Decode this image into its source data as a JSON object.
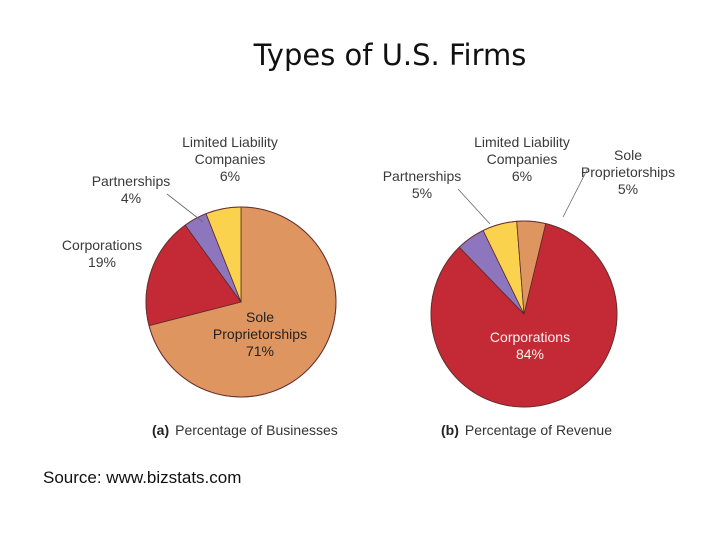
{
  "title": "Types of U.S. Firms",
  "source": "Source: www.bizstats.com",
  "colors": {
    "sole_proprietorships": "#df9560",
    "corporations": "#c42a35",
    "partnerships": "#8e76bf",
    "llc": "#fbd24e"
  },
  "chart_data": [
    {
      "type": "pie",
      "panel": "(a)",
      "title": "Percentage of Businesses",
      "slices": [
        {
          "key": "sole_proprietorships",
          "name_lines": [
            "Sole",
            "Proprietorships"
          ],
          "label": "71%",
          "value": 71
        },
        {
          "key": "corporations",
          "name_lines": [
            "Corporations"
          ],
          "label": "19%",
          "value": 19
        },
        {
          "key": "partnerships",
          "name_lines": [
            "Partnerships"
          ],
          "label": "4%",
          "value": 4
        },
        {
          "key": "llc",
          "name_lines": [
            "Limited Liability",
            "Companies"
          ],
          "label": "6%",
          "value": 6
        }
      ]
    },
    {
      "type": "pie",
      "panel": "(b)",
      "title": "Percentage of Revenue",
      "slices": [
        {
          "key": "sole_proprietorships",
          "name_lines": [
            "Sole",
            "Proprietorships"
          ],
          "label": "5%",
          "value": 5
        },
        {
          "key": "corporations",
          "name_lines": [
            "Corporations"
          ],
          "label": "84%",
          "value": 84
        },
        {
          "key": "partnerships",
          "name_lines": [
            "Partnerships"
          ],
          "label": "5%",
          "value": 5
        },
        {
          "key": "llc",
          "name_lines": [
            "Limited Liability",
            "Companies"
          ],
          "label": "6%",
          "value": 6
        }
      ]
    }
  ]
}
